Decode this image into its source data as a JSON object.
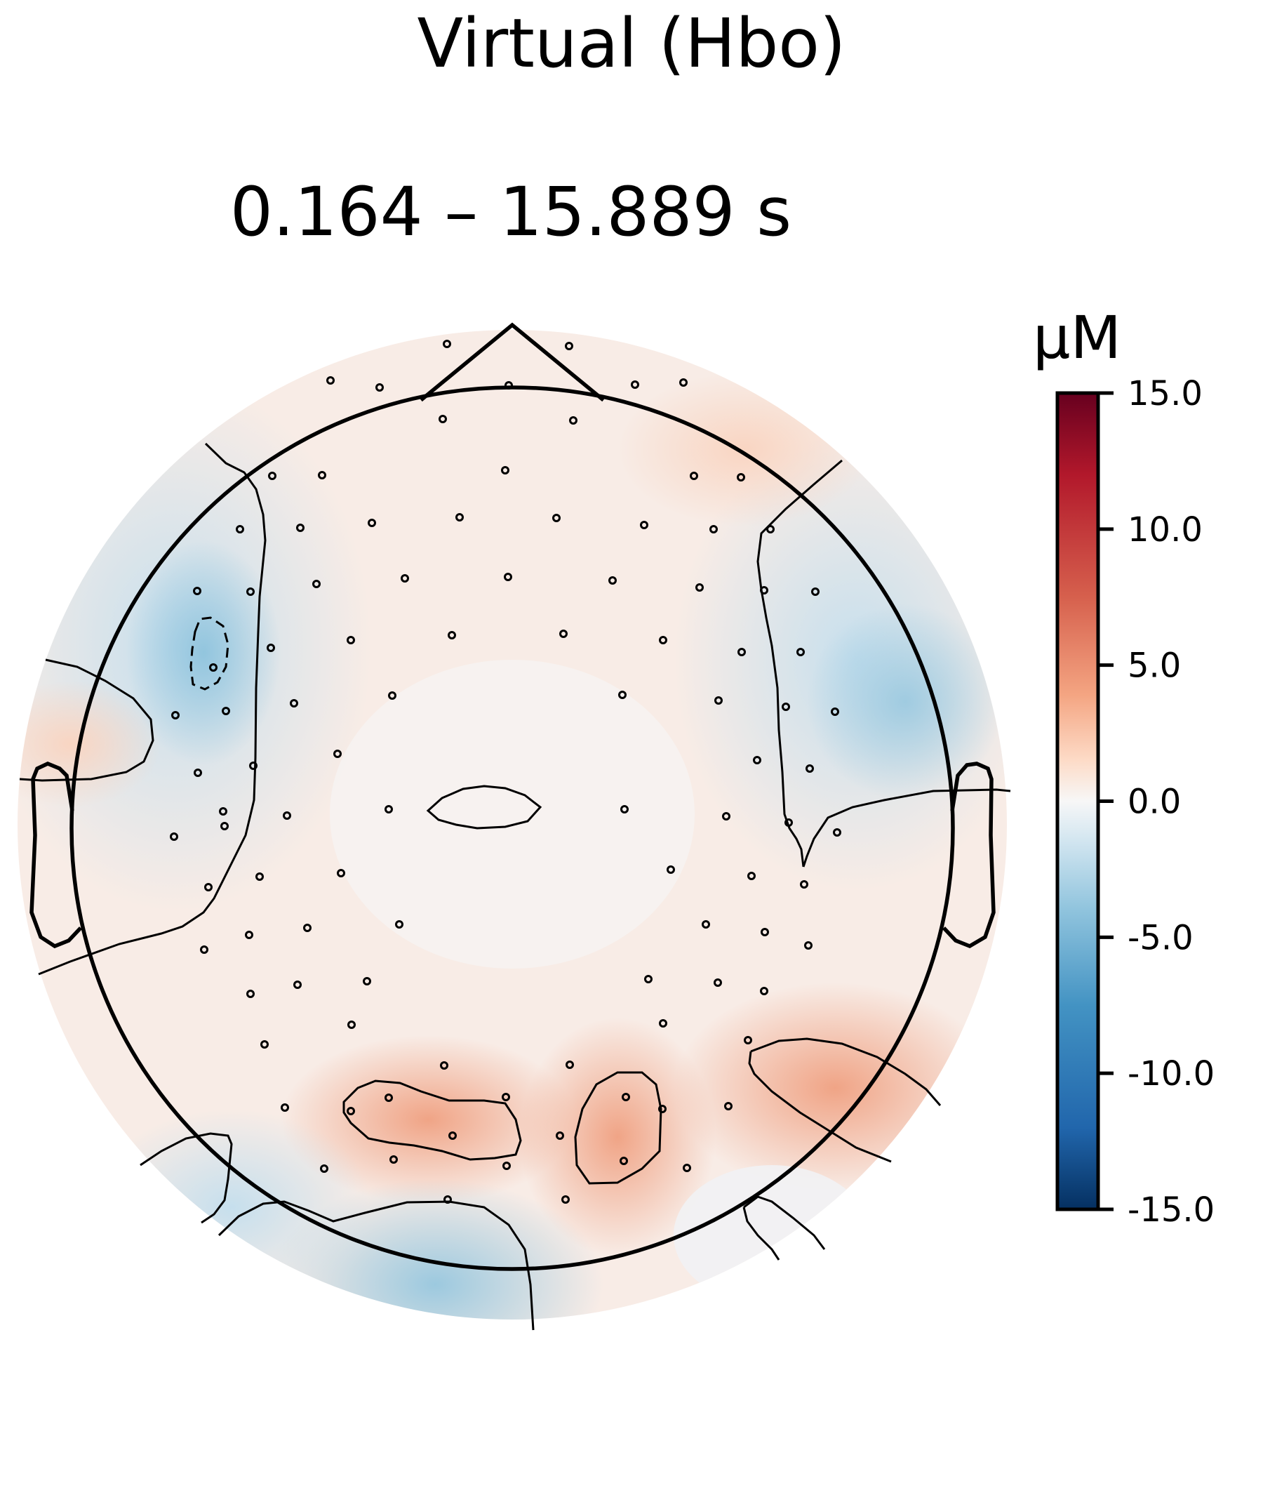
{
  "chart_data": {
    "type": "heatmap",
    "kind": "topomap",
    "title": "Virtual (Hbo)",
    "subtitle": "0.164 – 15.889 s",
    "colorbar": {
      "unit_label": "µM",
      "vmin": -15.0,
      "vmax": 15.0,
      "ticks": [
        "15.0",
        "10.0",
        "5.0",
        "0.0",
        "-5.0",
        "-10.0",
        "-15.0"
      ],
      "tick_values": [
        15,
        10,
        5,
        0,
        -5,
        -10,
        -15
      ],
      "colormap": "RdBu_r",
      "colors": {
        "min": "#053061",
        "neg_mid": "#4393c3",
        "neg_low": "#d1e5f0",
        "zero": "#f7f7f7",
        "pos_low": "#fddbc7",
        "pos_mid": "#d6604d",
        "max": "#67001f"
      }
    },
    "features": [
      {
        "region": "left-temporal-frontal",
        "value": -4
      },
      {
        "region": "left-temporal-peak",
        "value": -6
      },
      {
        "region": "right-temporal",
        "value": -4
      },
      {
        "region": "occipital-left-bottom",
        "value": -3
      },
      {
        "region": "occipital-left",
        "value": 5
      },
      {
        "region": "occipital-right",
        "value": 5
      },
      {
        "region": "right-posterior",
        "value": 5
      },
      {
        "region": "frontal-center",
        "value": 2
      }
    ]
  }
}
